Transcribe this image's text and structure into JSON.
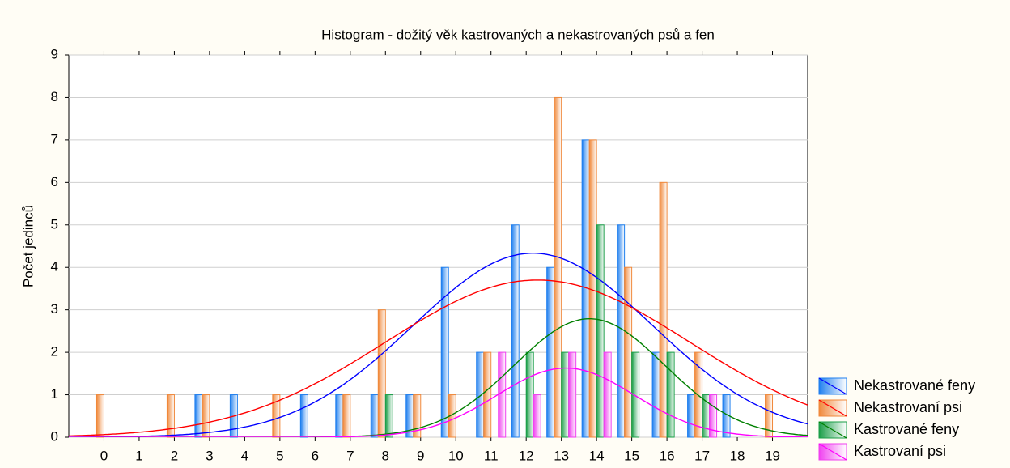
{
  "chart_data": {
    "type": "bar",
    "title": "Histogram - dožitý věk kastrovaných a nekastrovaných psů a fen",
    "y_label": "Počet jedinců",
    "categories": [
      0,
      1,
      2,
      3,
      4,
      5,
      6,
      7,
      8,
      9,
      10,
      11,
      12,
      13,
      14,
      15,
      16,
      17,
      18,
      19
    ],
    "series": [
      {
        "name": "Nekastrované feny",
        "color": "#1f7fef",
        "curve_color": "#0000ff",
        "values": [
          0,
          0,
          0,
          1,
          1,
          0,
          1,
          1,
          1,
          1,
          4,
          2,
          5,
          4,
          7,
          5,
          2,
          1,
          1,
          0
        ]
      },
      {
        "name": "Nekastrovaní psi",
        "color": "#f0883a",
        "curve_color": "#ff0000",
        "values": [
          1,
          0,
          1,
          1,
          0,
          1,
          0,
          1,
          3,
          1,
          1,
          2,
          0,
          8,
          7,
          4,
          6,
          2,
          0,
          1
        ]
      },
      {
        "name": "Kastrované feny",
        "color": "#1a9e48",
        "curve_color": "#008000",
        "values": [
          0,
          0,
          0,
          0,
          0,
          0,
          0,
          0,
          1,
          0,
          0,
          0,
          2,
          2,
          5,
          2,
          2,
          1,
          0,
          0
        ]
      },
      {
        "name": "Kastrovaní psi",
        "color": "#f040f0",
        "curve_color": "#ff00ff",
        "values": [
          0,
          0,
          0,
          0,
          0,
          0,
          0,
          0,
          0,
          0,
          0,
          2,
          1,
          2,
          2,
          0,
          0,
          1,
          0,
          0
        ]
      }
    ],
    "ylim": [
      0,
      9
    ],
    "yticks": [
      0,
      1,
      2,
      3,
      4,
      5,
      6,
      7,
      8,
      9
    ],
    "grid": true,
    "legend": "lower right"
  }
}
